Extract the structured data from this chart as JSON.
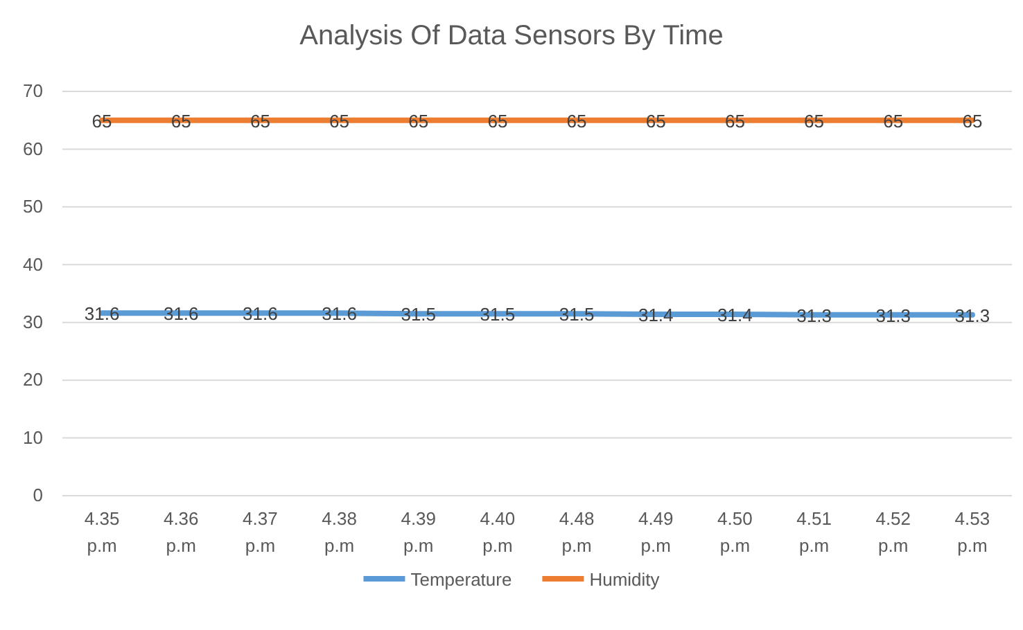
{
  "chart_data": {
    "type": "line",
    "title": "Analysis Of Data Sensors By Time",
    "categories": [
      "4.35 p.m",
      "4.36 p.m",
      "4.37 p.m",
      "4.38 p.m",
      "4.39 p.m",
      "4.40 p.m",
      "4.48 p.m",
      "4.49 p.m",
      "4.50 p.m",
      "4.51 p.m",
      "4.52 p.m",
      "4.53 p.m"
    ],
    "series": [
      {
        "name": "Temperature",
        "color": "#5b9bd5",
        "values": [
          31.6,
          31.6,
          31.6,
          31.6,
          31.5,
          31.5,
          31.5,
          31.4,
          31.4,
          31.3,
          31.3,
          31.3
        ]
      },
      {
        "name": "Humidity",
        "color": "#ed7d31",
        "values": [
          65,
          65,
          65,
          65,
          65,
          65,
          65,
          65,
          65,
          65,
          65,
          65
        ]
      }
    ],
    "ylim": [
      0,
      70
    ],
    "yticks": [
      0,
      10,
      20,
      30,
      40,
      50,
      60,
      70
    ],
    "grid": "y",
    "legend": "bottom",
    "data_labels": true,
    "marker": "none",
    "line_style": "solid"
  }
}
